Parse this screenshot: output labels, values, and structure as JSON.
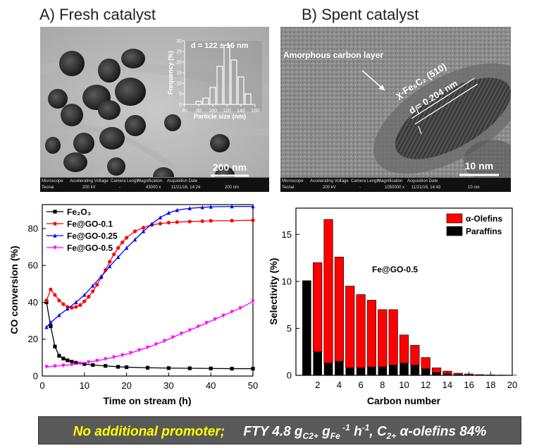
{
  "panel_a": {
    "title": "A) Fresh catalyst",
    "scale_bar": "200 nm",
    "inset": {
      "annotation": "d = 122 ± 16 nm",
      "xlabel": "Particle size (nm)",
      "ylabel": "Frequency (%)",
      "xticks": [
        "60",
        "80",
        "100",
        "120",
        "140",
        "160"
      ],
      "yticks": [
        "0",
        "5",
        "10",
        "15",
        "20",
        "25",
        "30"
      ],
      "bins": [
        80,
        90,
        100,
        110,
        120,
        130,
        140,
        150
      ],
      "values": [
        1.5,
        3,
        8,
        18,
        28,
        21,
        13,
        5
      ]
    },
    "info_headers": [
      "Microscope",
      "Accelerating Voltage",
      "Camera Length",
      "Magnification",
      "Acquisition Date"
    ],
    "info_values": [
      "Tecnai",
      "200 kV",
      "-",
      "43000 x",
      "11/21/16, 14:24",
      "200 nm"
    ]
  },
  "panel_b": {
    "title": "B) Spent catalyst",
    "amorphous_label": "Amorphous carbon layer",
    "phase_label": "χ-Fe₅C₂ (510)",
    "d_spacing": "d = 0.204 nm",
    "scale_bar": "10 nm",
    "info_headers": [
      "Microscope",
      "Accelerating Voltage",
      "Camera Length",
      "Magnification",
      "Acquisition Date"
    ],
    "info_values": [
      "Tecnai",
      "200 kV",
      "-",
      "1050000 x",
      "11/21/16, 14:43",
      "10 nm"
    ]
  },
  "chart_data": [
    {
      "type": "line",
      "xlabel": "Time on stream (h)",
      "ylabel": "CO conversion (%)",
      "xlim": [
        0,
        50
      ],
      "ylim": [
        0,
        93
      ],
      "xticks": [
        0,
        10,
        20,
        30,
        40,
        50
      ],
      "yticks": [
        0,
        20,
        40,
        60,
        80
      ],
      "legend_position": "top-left",
      "series": [
        {
          "name": "Fe₂O₃",
          "color": "#000000",
          "marker": "square",
          "x": [
            1,
            2,
            3,
            4,
            5,
            6,
            7,
            8,
            10,
            12,
            15,
            18,
            20,
            25,
            30,
            35,
            40,
            45,
            50
          ],
          "y": [
            40,
            27,
            16,
            11,
            9.5,
            8.5,
            7.8,
            7.2,
            6.5,
            6,
            5.5,
            5,
            4.8,
            4.5,
            4.3,
            4.2,
            4.1,
            4,
            4
          ]
        },
        {
          "name": "Fe@GO-0.1",
          "color": "#ff0000",
          "marker": "circle",
          "x": [
            1,
            2,
            3,
            4,
            5,
            6,
            7,
            8,
            9,
            10,
            11,
            12,
            13,
            14,
            15,
            16,
            17,
            18,
            19,
            20,
            22,
            24,
            26,
            28,
            30,
            32,
            35,
            38,
            40,
            45,
            50
          ],
          "y": [
            41,
            47,
            44,
            41,
            39,
            37.5,
            37,
            37.5,
            38.5,
            40.5,
            43,
            46,
            49.5,
            53.5,
            57.5,
            62,
            66,
            69.5,
            72.5,
            75,
            78.5,
            80.5,
            82,
            82.7,
            83.2,
            83.5,
            83.8,
            84,
            84.2,
            84.3,
            84.5
          ]
        },
        {
          "name": "Fe@GO-0.25",
          "color": "#0000ff",
          "marker": "triangle",
          "x": [
            1,
            2,
            4,
            6,
            8,
            10,
            12,
            14,
            16,
            18,
            20,
            22,
            24,
            26,
            28,
            30,
            32,
            35,
            38,
            40,
            45,
            50
          ],
          "y": [
            26.5,
            29,
            33,
            36.5,
            40,
            44,
            49,
            54,
            59.5,
            64.5,
            69.5,
            74,
            78.5,
            82.5,
            86,
            88.5,
            90,
            91,
            91.5,
            91.8,
            92,
            92
          ]
        },
        {
          "name": "Fe@GO-0.5",
          "color": "#ff00ff",
          "marker": "triangle-down",
          "x": [
            1,
            3,
            5,
            7,
            9,
            11,
            13,
            15,
            17,
            19,
            21,
            23,
            25,
            27,
            29,
            31,
            33,
            35,
            37,
            39,
            41,
            43,
            45,
            47,
            50
          ],
          "y": [
            5,
            5.3,
            5.7,
            6.2,
            6.8,
            7.5,
            8.3,
            9.2,
            10.2,
            11.3,
            12.5,
            14,
            15.5,
            17.2,
            19,
            21,
            23,
            24.8,
            26.8,
            28.8,
            30.8,
            32.8,
            34.8,
            36.8,
            40.5
          ]
        }
      ]
    },
    {
      "type": "bar",
      "stacked": true,
      "xlabel": "Carbon number",
      "ylabel": "Selectivity (%)",
      "annotation": "Fe@GO-0.5",
      "xlim": [
        0,
        20
      ],
      "ylim": [
        0,
        17.8
      ],
      "xticks": [
        2,
        4,
        6,
        8,
        10,
        12,
        14,
        16,
        18,
        20
      ],
      "yticks": [
        0,
        5,
        10,
        15
      ],
      "legend_position": "top-right",
      "categories": [
        1,
        2,
        3,
        4,
        5,
        6,
        7,
        8,
        9,
        10,
        11,
        12,
        13,
        14,
        15,
        16,
        17,
        18,
        19,
        20
      ],
      "series": [
        {
          "name": "α-Olefins",
          "color": "#ff0000",
          "values": [
            0,
            9.5,
            15.3,
            11.1,
            8.7,
            7.8,
            7.1,
            6.1,
            5.9,
            3,
            2.1,
            1.2,
            0.5,
            0.3,
            0.15,
            0.1,
            0.05,
            0.03,
            0.02,
            0.01
          ]
        },
        {
          "name": "Paraffins",
          "color": "#000000",
          "values": [
            10.1,
            2.5,
            1.3,
            1.5,
            0.8,
            0.8,
            0.9,
            0.9,
            1.1,
            1.3,
            1.1,
            0.7,
            0.3,
            0.15,
            0.08,
            0.05,
            0.03,
            0.02,
            0.01,
            0.01
          ]
        }
      ]
    }
  ],
  "banner": {
    "part1": "No additional promoter;",
    "part2": "FTY 4.8 g",
    "sub1": "C2+",
    "part3": " g",
    "sub2": "Fe",
    "sup1": " -1",
    "part4": " h",
    "sup2": "-1",
    "part5": ", C",
    "sub3": "2+",
    "part6": " α-olefins 84%"
  }
}
